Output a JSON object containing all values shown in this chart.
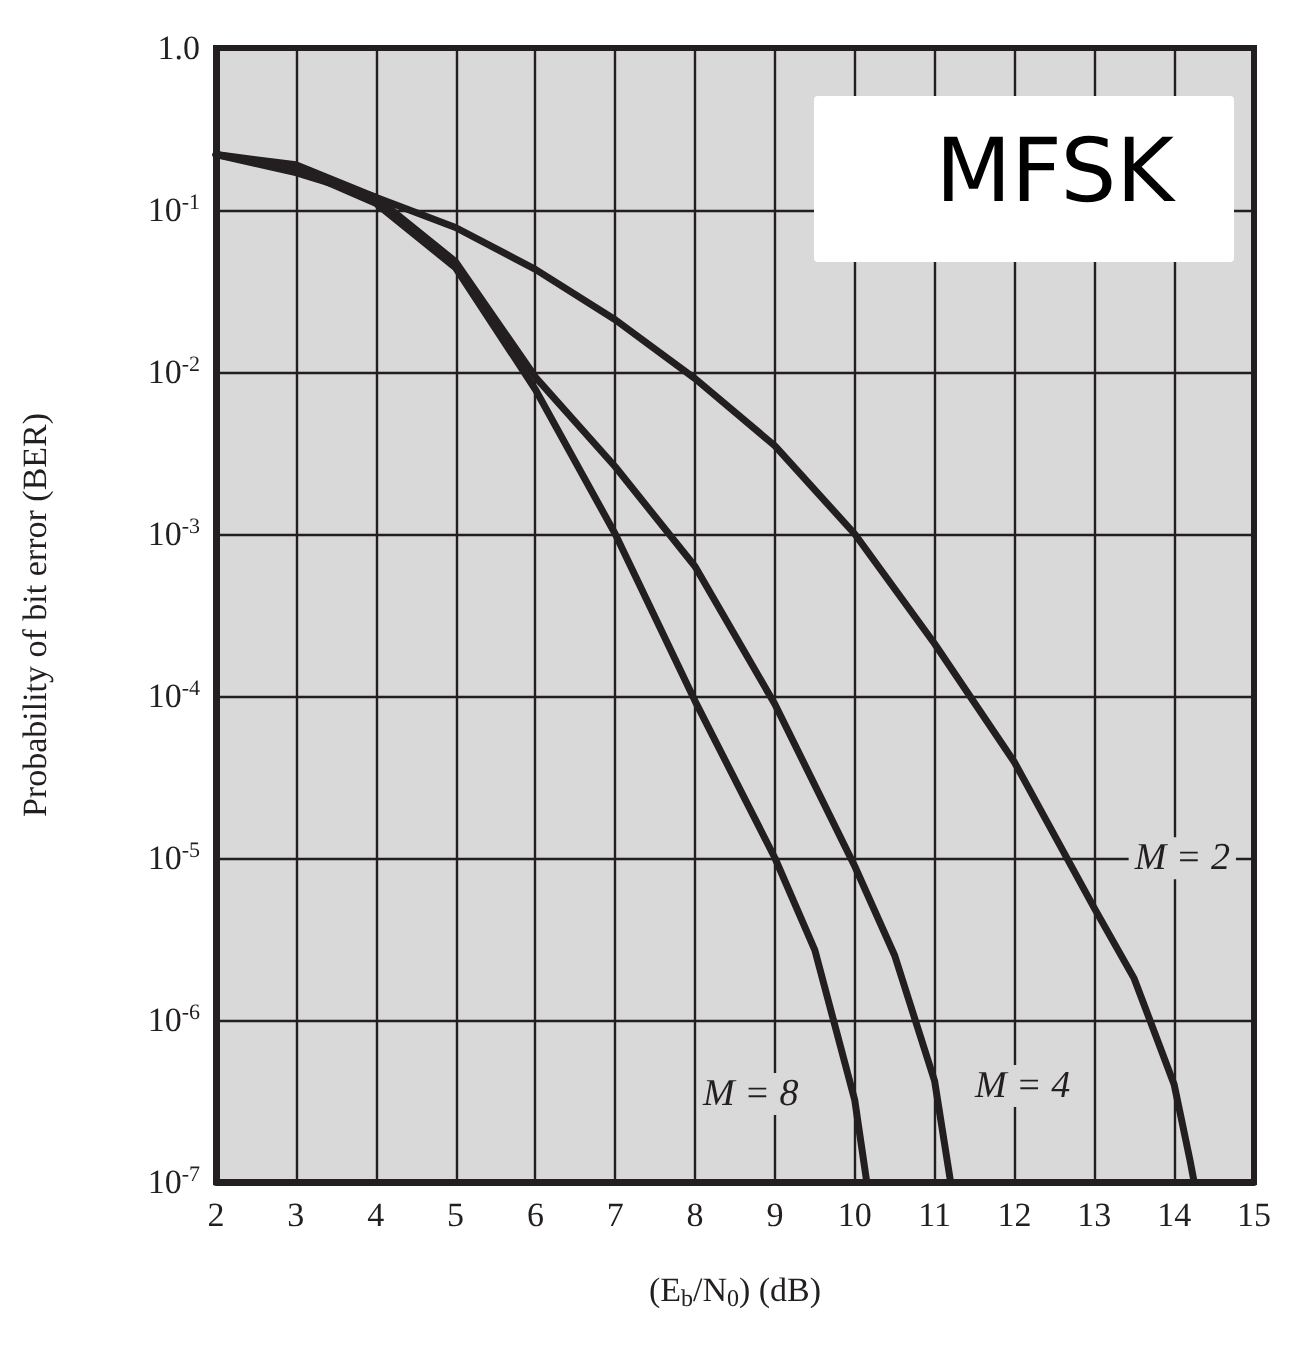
{
  "chart_data": {
    "type": "line",
    "xlabel": "(E$_{b}$/N$_{0}$) (dB)",
    "ylabel": "Probability of bit error (BER)",
    "log": "y",
    "grid": true,
    "marker": "none",
    "line_style": "solid",
    "xlim": [
      2,
      15
    ],
    "xticks": [
      2,
      3,
      4,
      5,
      6,
      7,
      8,
      9,
      10,
      11,
      12,
      13,
      14,
      15
    ],
    "ylim": [
      1e-07,
      1
    ],
    "yticks": [
      {
        "value": 1e-07,
        "label": "10$^{-7}$"
      },
      {
        "value": 1e-06,
        "label": "10$^{-6}$"
      },
      {
        "value": 1e-05,
        "label": "10$^{-5}$"
      },
      {
        "value": 0.0001,
        "label": "10$^{-4}$"
      },
      {
        "value": 0.001,
        "label": "10$^{-3}$"
      },
      {
        "value": 0.01,
        "label": "10$^{-2}$"
      },
      {
        "value": 0.1,
        "label": "10$^{-1}$"
      },
      {
        "value": 1,
        "label": "1.0"
      }
    ],
    "series": [
      {
        "name": "M = 2",
        "color": "#231f20",
        "x": [
          2,
          3,
          4,
          5,
          6,
          7,
          8,
          9,
          10,
          11,
          12,
          13,
          13.5,
          14,
          14.2,
          14.25
        ],
        "values": [
          0.22,
          0.17,
          0.12,
          0.078,
          0.043,
          0.021,
          0.0091,
          0.0035,
          0.001,
          0.00021,
          3.9e-05,
          4.9e-06,
          1.8e-06,
          4e-07,
          1.35e-07,
          1e-07
        ]
      },
      {
        "name": "M = 4",
        "color": "#231f20",
        "x": [
          2,
          3,
          4,
          5,
          6,
          7,
          8,
          9,
          10,
          10.5,
          11,
          11.2
        ],
        "values": [
          0.22,
          0.19,
          0.12,
          0.048,
          0.0093,
          0.0026,
          0.00063,
          8.9e-05,
          8.9e-06,
          2.5e-06,
          4.2e-07,
          1e-07
        ]
      },
      {
        "name": "M = 8",
        "color": "#231f20",
        "x": [
          2,
          3,
          4,
          5,
          6,
          7,
          8,
          9,
          9.5,
          10,
          10.15
        ],
        "values": [
          0.22,
          0.18,
          0.11,
          0.044,
          0.0078,
          0.001,
          9.3e-05,
          1e-05,
          2.7e-06,
          3.2e-07,
          1e-07
        ]
      }
    ],
    "annotations": [
      "MFSK"
    ]
  }
}
